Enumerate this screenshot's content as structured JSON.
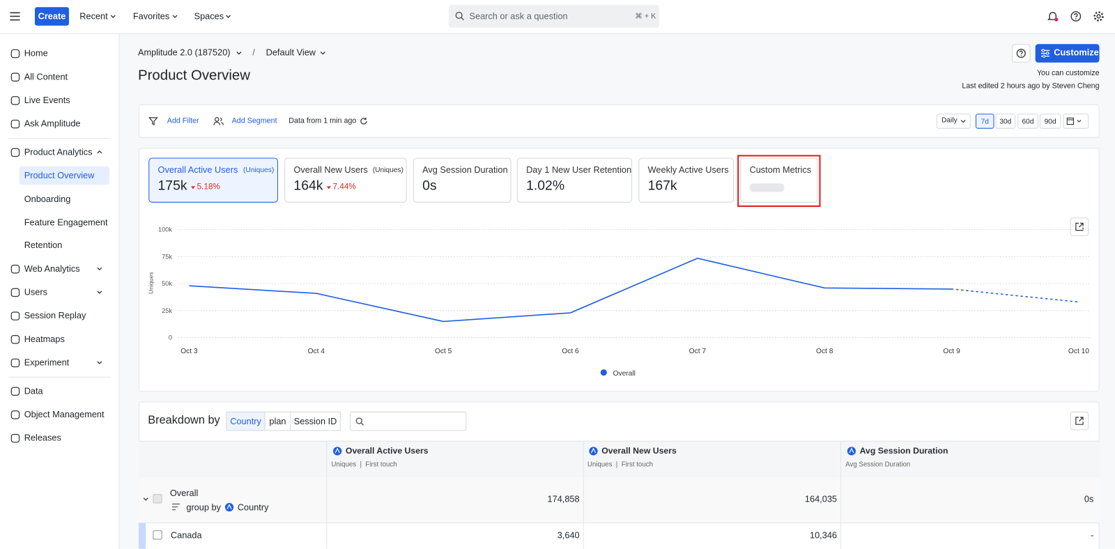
{
  "topbar": {
    "create": "Create",
    "menus": [
      "Recent",
      "Favorites",
      "Spaces"
    ],
    "search_placeholder": "Search or ask a question",
    "shortcut": "⌘ + K"
  },
  "sidebar": {
    "items": [
      "Home",
      "All Content",
      "Live Events",
      "Ask Amplitude",
      "Product Analytics",
      "Product Overview",
      "Onboarding",
      "Feature Engagement",
      "Retention",
      "Web Analytics",
      "Users",
      "Session Replay",
      "Heatmaps",
      "Experiment",
      "Data",
      "Object Management",
      "Releases"
    ]
  },
  "header": {
    "project": "Amplitude 2.0 (187520)",
    "separator": "/",
    "view": "Default View",
    "title": "Product Overview",
    "customize": "Customize",
    "customize_note": "You can customize",
    "last_edited": "Last edited 2 hours ago by Steven Cheng"
  },
  "filters": {
    "add_filter": "Add Filter",
    "add_segment": "Add Segment",
    "data_freshness": "Data from 1 min ago",
    "interval": "Daily",
    "ranges": [
      "7d",
      "30d",
      "60d",
      "90d"
    ]
  },
  "metrics": [
    {
      "label": "Overall Active Users",
      "qualifier": "(Uniques)",
      "value": "175k",
      "change": "5.18%"
    },
    {
      "label": "Overall New Users",
      "qualifier": "(Uniques)",
      "value": "164k",
      "change": "7.44%"
    },
    {
      "label": "Avg Session Duration",
      "value": "0s"
    },
    {
      "label": "Day 1 New User Retention",
      "value": "1.02%"
    },
    {
      "label": "Weekly Active Users",
      "value": "167k"
    },
    {
      "label": "Custom Metrics"
    }
  ],
  "chart_data": {
    "type": "line",
    "y_label": "Uniques",
    "categories": [
      "Oct 3",
      "Oct 4",
      "Oct 5",
      "Oct 6",
      "Oct 7",
      "Oct 8",
      "Oct 9",
      "Oct 10"
    ],
    "series": [
      {
        "name": "Overall",
        "color": "#1f5fe0",
        "values": [
          48000,
          41000,
          15000,
          23000,
          73500,
          46000,
          45000,
          33000
        ]
      }
    ],
    "ylim": [
      0,
      100000
    ],
    "yticks": [
      0,
      {
        "value": 25000,
        "label": "25k"
      },
      {
        "value": 50000,
        "label": "50k"
      },
      {
        "value": 75000,
        "label": "75k"
      },
      {
        "value": 100000,
        "label": "100k"
      }
    ],
    "grid": true
  },
  "breakdown": {
    "title": "Breakdown by",
    "tabs": [
      "Country",
      "plan",
      "Session ID"
    ],
    "columns": [
      {
        "title": "Overall Active Users",
        "subtitle": "Uniques  |  First touch"
      },
      {
        "title": "Overall New Users",
        "subtitle": "Uniques  |  First touch"
      },
      {
        "title": "Avg Session Duration",
        "subtitle": "Avg Session Duration"
      }
    ],
    "rows": [
      {
        "label": "Overall",
        "group_by": "group by",
        "group_field": "Country",
        "cells": [
          "174,858",
          "164,035",
          "0s"
        ]
      },
      {
        "label": "Canada",
        "cells": [
          "3,640",
          "10,346",
          "-"
        ]
      }
    ]
  }
}
